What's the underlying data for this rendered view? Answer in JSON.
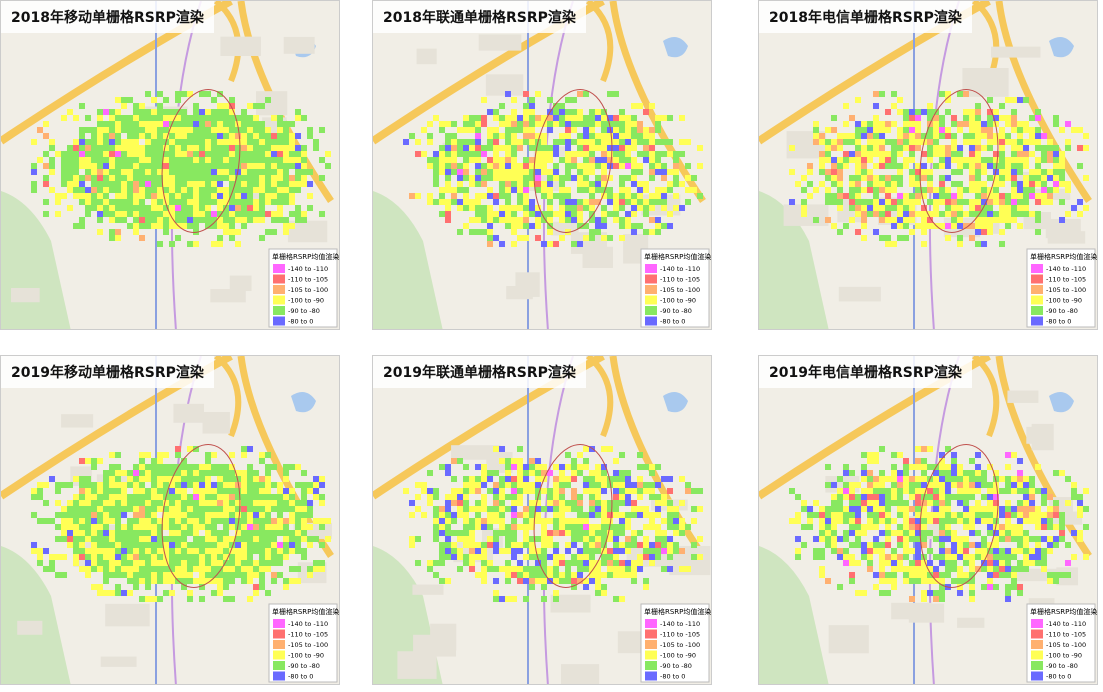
{
  "panels": [
    {
      "title": "2018年移动单栅格RSRP渲染"
    },
    {
      "title": "2018年联通单栅格RSRP渲染"
    },
    {
      "title": "2018年电信单栅格RSRP渲染"
    },
    {
      "title": "2019年移动单栅格RSRP渲染"
    },
    {
      "title": "2019年联通单栅格RSRP渲染"
    },
    {
      "title": "2019年电信单栅格RSRP渲染"
    }
  ],
  "legend": {
    "title": "单栅格RSRP均值渲染",
    "items": [
      {
        "label": "-140 to -110",
        "color": "#ff66ff"
      },
      {
        "label": "-110 to -105",
        "color": "#ff7070"
      },
      {
        "label": "-105 to -100",
        "color": "#ffb070"
      },
      {
        "label": "-100 to -90",
        "color": "#ffff55"
      },
      {
        "label": "-90 to -80",
        "color": "#88e860"
      },
      {
        "label": "-80 to 0",
        "color": "#6a6aff"
      }
    ]
  }
}
